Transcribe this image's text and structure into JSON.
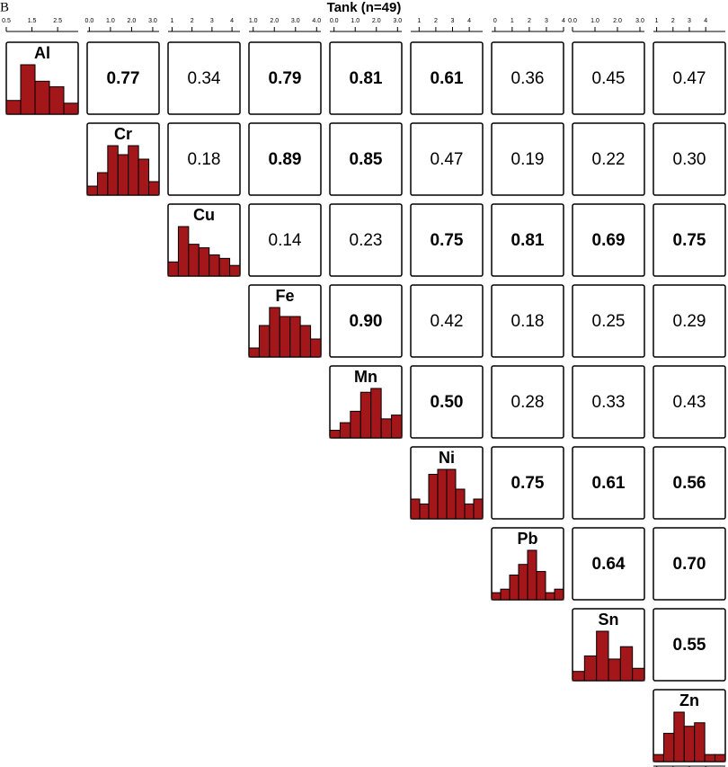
{
  "chart_data": {
    "type": "pairs",
    "panel_label": "B",
    "title": "Tank (n=49)",
    "bar_color": "#a3161a",
    "variables": [
      {
        "name": "Al",
        "xlim": [
          0.5,
          3.3
        ],
        "xticks": [
          0.5,
          1.5,
          2.5
        ],
        "hist": [
          5,
          18,
          12,
          10,
          4
        ]
      },
      {
        "name": "Cr",
        "xlim": [
          -0.1,
          3.3
        ],
        "xticks": [
          {
            "value": 0,
            "label": "0.0"
          },
          {
            "value": 1,
            "label": "1.0"
          },
          {
            "value": 2,
            "label": "2.0"
          },
          {
            "value": 3,
            "label": "3.0"
          }
        ],
        "hist": [
          2,
          5,
          11,
          9,
          11,
          8,
          3
        ]
      },
      {
        "name": "Cu",
        "xlim": [
          0.8,
          4.4
        ],
        "xticks": [
          1,
          2,
          3,
          4
        ],
        "hist": [
          4,
          14,
          9,
          8,
          6,
          5,
          3
        ]
      },
      {
        "name": "Fe",
        "xlim": [
          0.8,
          4.2
        ],
        "xticks": [
          {
            "value": 1,
            "label": "1.0"
          },
          {
            "value": 2,
            "label": "2.0"
          },
          {
            "value": 3,
            "label": "3.0"
          },
          {
            "value": 4,
            "label": "4.0"
          }
        ],
        "hist": [
          2,
          7,
          11,
          9,
          9,
          7,
          4
        ]
      },
      {
        "name": "Mn",
        "xlim": [
          -0.2,
          3.2
        ],
        "xticks": [
          {
            "value": 0,
            "label": "0.0"
          },
          {
            "value": 1,
            "label": "1.0"
          },
          {
            "value": 2,
            "label": "2.0"
          },
          {
            "value": 3,
            "label": "3.0"
          }
        ],
        "hist": [
          2,
          4,
          7,
          12,
          13,
          5,
          6
        ]
      },
      {
        "name": "Ni",
        "xlim": [
          0.5,
          4.8
        ],
        "xticks": [
          1,
          2,
          3,
          4
        ],
        "hist": [
          4,
          3,
          9,
          10,
          10,
          6,
          3,
          4
        ]
      },
      {
        "name": "Pb",
        "xlim": [
          -0.2,
          4.0
        ],
        "xticks": [
          0,
          1,
          2,
          3,
          4
        ],
        "hist": [
          2,
          3,
          7,
          10,
          14,
          8,
          2,
          3
        ]
      },
      {
        "name": "Sn",
        "xlim": [
          0,
          3.2
        ],
        "xticks": [
          {
            "value": 0,
            "label": "0.0"
          },
          {
            "value": 1,
            "label": "1.0"
          },
          {
            "value": 2,
            "label": "2.0"
          },
          {
            "value": 3,
            "label": "3.0"
          }
        ],
        "hist": [
          3,
          8,
          16,
          7,
          11,
          4
        ]
      },
      {
        "name": "Zn",
        "xlim": [
          0.8,
          5.2
        ],
        "xticks": [
          1,
          2,
          3,
          4
        ],
        "hist": [
          2,
          8,
          14,
          10,
          11,
          2,
          2
        ]
      }
    ],
    "correlations": [
      {
        "values": [
          0.77,
          0.34,
          0.79,
          0.81,
          0.61,
          0.36,
          0.45,
          0.47
        ],
        "value_labels": [
          "0.77",
          "0.34",
          "0.79",
          "0.81",
          "0.61",
          "0.36",
          "0.45",
          "0.47"
        ],
        "bold": [
          true,
          false,
          true,
          true,
          true,
          false,
          false,
          false
        ]
      },
      {
        "values": [
          0.18,
          0.89,
          0.85,
          0.47,
          0.19,
          0.22,
          0.3
        ],
        "value_labels": [
          "0.18",
          "0.89",
          "0.85",
          "0.47",
          "0.19",
          "0.22",
          "0.30"
        ],
        "bold": [
          false,
          true,
          true,
          false,
          false,
          false,
          false
        ]
      },
      {
        "values": [
          0.14,
          0.23,
          0.75,
          0.81,
          0.69,
          0.75
        ],
        "value_labels": [
          "0.14",
          "0.23",
          "0.75",
          "0.81",
          "0.69",
          "0.75"
        ],
        "bold": [
          false,
          false,
          true,
          true,
          true,
          true
        ]
      },
      {
        "values": [
          0.9,
          0.42,
          0.18,
          0.25,
          0.29
        ],
        "value_labels": [
          "0.90",
          "0.42",
          "0.18",
          "0.25",
          "0.29"
        ],
        "bold": [
          true,
          false,
          false,
          false,
          false
        ]
      },
      {
        "values": [
          0.5,
          0.28,
          0.33,
          0.43
        ],
        "value_labels": [
          "0.50",
          "0.28",
          "0.33",
          "0.43"
        ],
        "bold": [
          true,
          false,
          false,
          false
        ]
      },
      {
        "values": [
          0.75,
          0.61,
          0.56
        ],
        "value_labels": [
          "0.75",
          "0.61",
          "0.56"
        ],
        "bold": [
          true,
          true,
          true
        ]
      },
      {
        "values": [
          0.64,
          0.7
        ],
        "value_labels": [
          "0.64",
          "0.70"
        ],
        "bold": [
          true,
          true
        ]
      },
      {
        "values": [
          0.55
        ],
        "value_labels": [
          "0.55"
        ],
        "bold": [
          true
        ]
      }
    ]
  }
}
